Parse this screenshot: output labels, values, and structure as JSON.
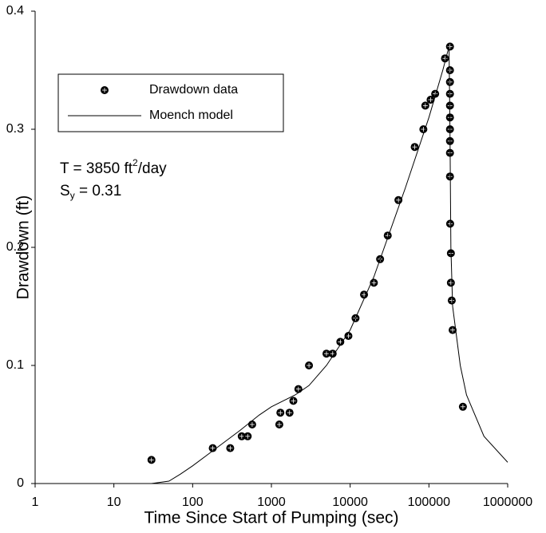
{
  "chart_data": {
    "type": "scatter",
    "x_label": "Time Since Start of Pumping (sec)",
    "y_label": "Drawdown  (ft)",
    "xscale": "log",
    "xlim": [
      1,
      1000000
    ],
    "xticks": [
      1,
      10,
      100,
      1000,
      10000,
      100000,
      1000000
    ],
    "ylim": [
      0,
      0.4
    ],
    "yticks": [
      0,
      0.1,
      0.2,
      0.3,
      0.4
    ],
    "legend": "upper left",
    "annotations": [
      {
        "parts": [
          "T = 3850 ft",
          "2",
          "/day"
        ]
      },
      {
        "parts": [
          "S",
          "y",
          " = 0.31"
        ]
      }
    ],
    "series": [
      {
        "name": "Drawdown data",
        "mark": "scatter",
        "color": "#000000",
        "x": [
          30,
          180,
          300,
          420,
          500,
          570,
          1260,
          1300,
          1700,
          1900,
          2200,
          3000,
          5000,
          6000,
          7500,
          9500,
          11700,
          15000,
          20000,
          24000,
          30000,
          41000,
          66000,
          85000,
          90000,
          105000,
          120000,
          160000,
          185000,
          185000,
          185000,
          185000,
          185000,
          185000,
          185000,
          185000,
          185000,
          185000,
          186000,
          190000,
          190000,
          195000,
          200000,
          270000
        ],
        "values": [
          0.02,
          0.03,
          0.03,
          0.04,
          0.04,
          0.05,
          0.05,
          0.06,
          0.06,
          0.07,
          0.08,
          0.1,
          0.11,
          0.11,
          0.12,
          0.125,
          0.14,
          0.16,
          0.17,
          0.19,
          0.21,
          0.24,
          0.285,
          0.3,
          0.32,
          0.325,
          0.33,
          0.36,
          0.37,
          0.35,
          0.34,
          0.33,
          0.32,
          0.31,
          0.3,
          0.29,
          0.28,
          0.26,
          0.22,
          0.195,
          0.17,
          0.155,
          0.13,
          0.065
        ]
      },
      {
        "name": "Moench model",
        "mark": "line",
        "color": "#000000",
        "x": [
          1,
          10,
          30,
          50,
          70,
          100,
          200,
          400,
          700,
          1000,
          2000,
          3000,
          5000,
          10000,
          20000,
          50000,
          100000,
          150000,
          180000,
          185000,
          190000,
          200000,
          250000,
          300000,
          500000,
          1000000
        ],
        "values": [
          0,
          0,
          0,
          0.002,
          0.008,
          0.015,
          0.03,
          0.045,
          0.058,
          0.065,
          0.075,
          0.083,
          0.1,
          0.13,
          0.175,
          0.25,
          0.31,
          0.35,
          0.37,
          0.3,
          0.2,
          0.15,
          0.1,
          0.075,
          0.04,
          0.018
        ]
      }
    ]
  }
}
